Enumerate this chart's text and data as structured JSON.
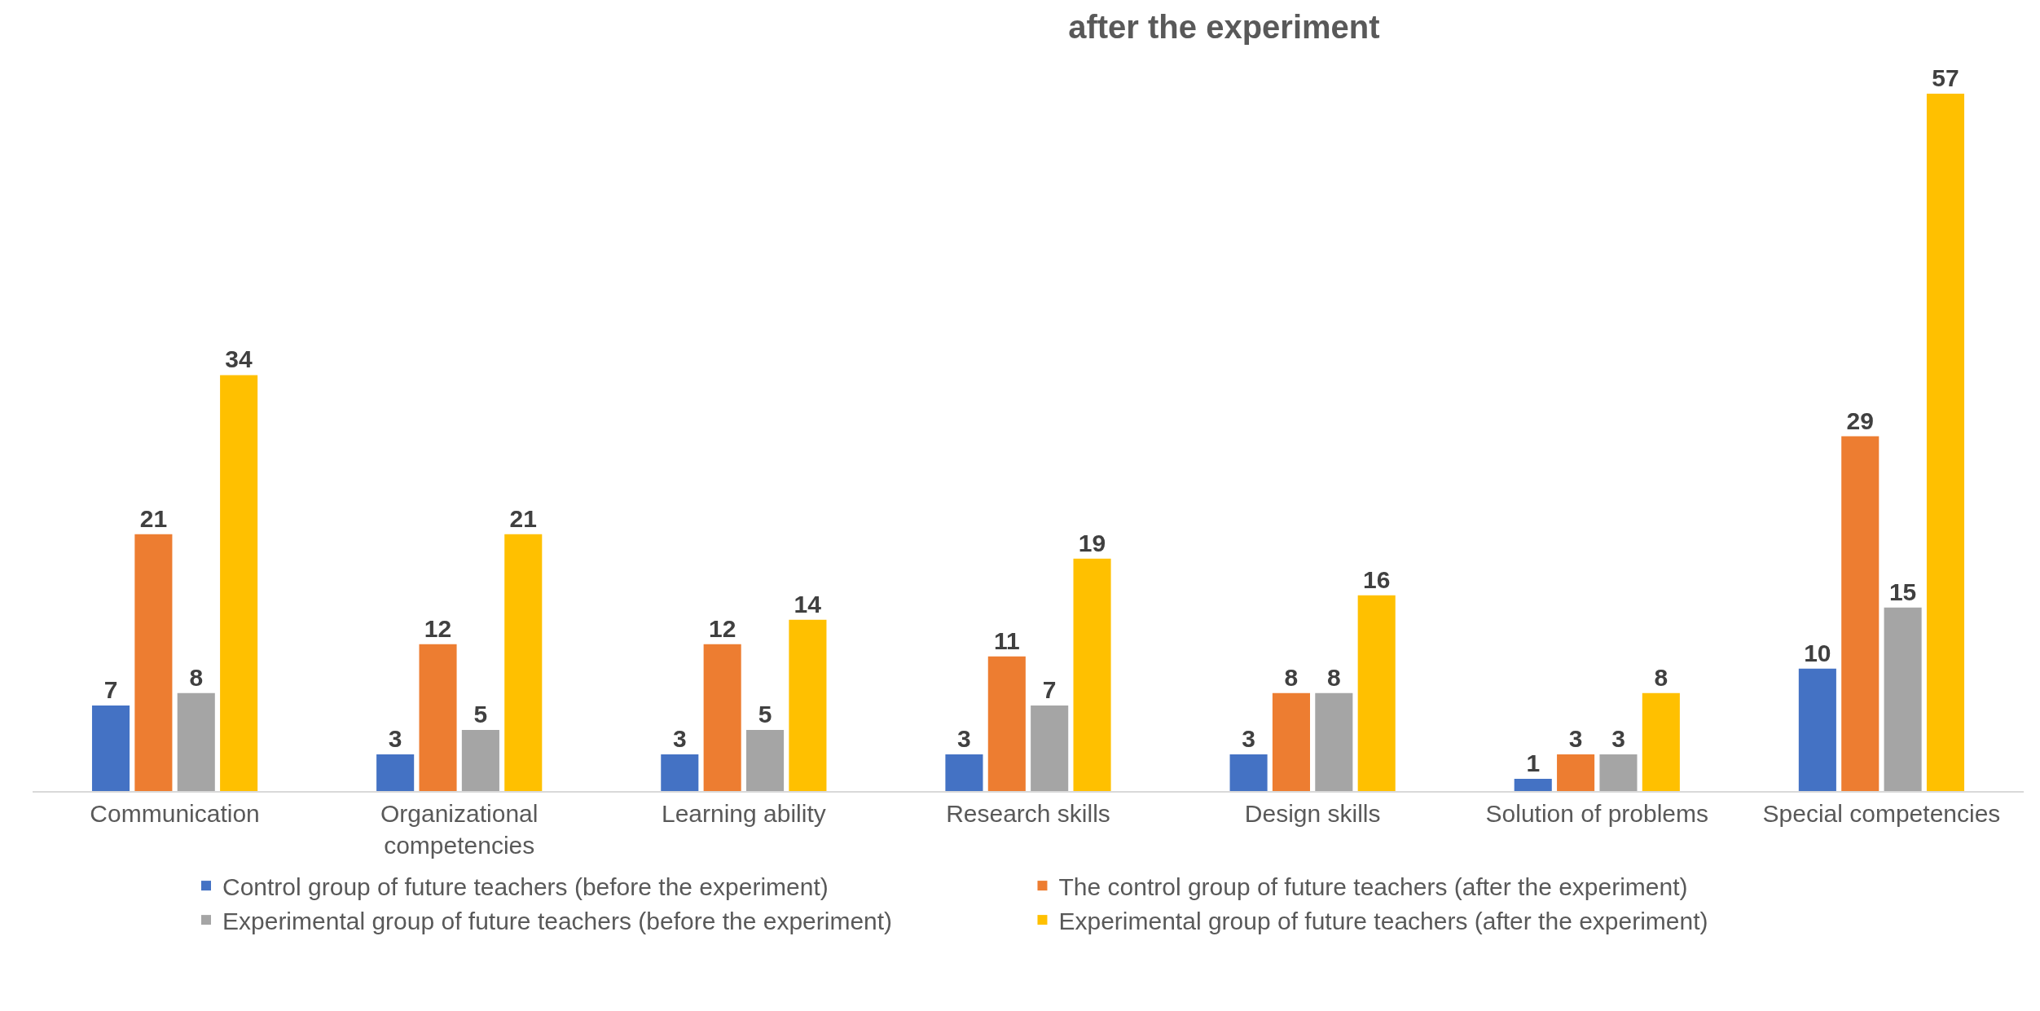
{
  "chart_data": {
    "type": "bar",
    "title": "after the experiment",
    "categories": [
      "Communication",
      "Organizational competencies",
      "Learning ability",
      "Research skills",
      "Design skills",
      "Solution of problems",
      "Special competencies"
    ],
    "series": [
      {
        "name": "Control group of future teachers (before the experiment)",
        "color": "#4472c4",
        "values": [
          7,
          3,
          3,
          3,
          3,
          1,
          10
        ]
      },
      {
        "name": "The control group of future teachers (after the experiment)",
        "color": "#ed7d31",
        "values": [
          21,
          12,
          12,
          11,
          8,
          3,
          29
        ]
      },
      {
        "name": "Experimental group of future teachers (before the experiment)",
        "color": "#a5a5a5",
        "values": [
          8,
          5,
          5,
          7,
          8,
          3,
          15
        ]
      },
      {
        "name": "Experimental group of future teachers (after the experiment)",
        "color": "#ffc000",
        "values": [
          34,
          21,
          14,
          19,
          16,
          8,
          57
        ]
      }
    ],
    "data_labels": true,
    "legend": "bottom"
  }
}
